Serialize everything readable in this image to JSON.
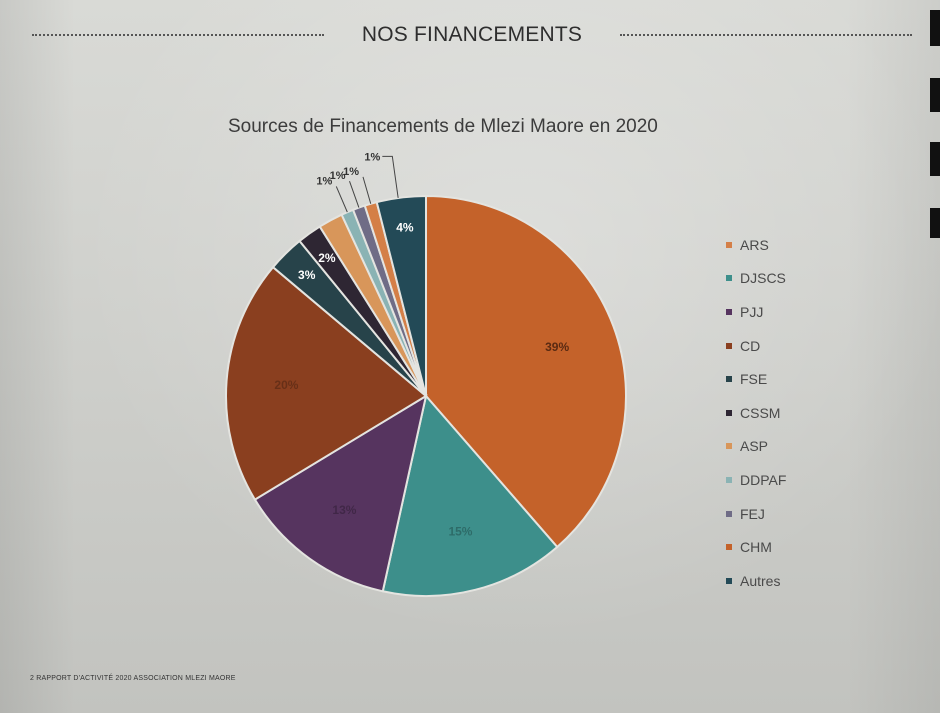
{
  "header": {
    "title": "NOS FINANCEMENTS"
  },
  "footer": {
    "text": "2  RAPPORT D'ACTIVITÉ 2020 ASSOCIATION MLEZI MAORE"
  },
  "chart_data": {
    "type": "pie",
    "title": "Sources de Financements de Mlezi Maore en 2020",
    "legend_position": "right",
    "slices": [
      {
        "label": "CHM",
        "value": 39,
        "text": "39%",
        "color": "#c4622a"
      },
      {
        "label": "DJSCS",
        "value": 15,
        "text": "15%",
        "color": "#3d8f8b"
      },
      {
        "label": "PJJ",
        "value": 13,
        "text": "13%",
        "color": "#56345f"
      },
      {
        "label": "CD",
        "value": 20,
        "text": "20%",
        "color": "#8a3f1f"
      },
      {
        "label": "FSE",
        "value": 3,
        "text": "3%",
        "color": "#27434a"
      },
      {
        "label": "CSSM",
        "value": 2,
        "text": "2%",
        "color": "#2e2633"
      },
      {
        "label": "ASP",
        "value": 2,
        "text": "",
        "color": "#d8965a"
      },
      {
        "label": "DDPAF",
        "value": 1,
        "text": "1%",
        "color": "#8ab3b4"
      },
      {
        "label": "FEJ",
        "value": 1,
        "text": "1%",
        "color": "#6f6c86"
      },
      {
        "label": "ARS",
        "value": 1,
        "text": "1%",
        "color": "#d47f47"
      },
      {
        "label": "Autres",
        "value": 4,
        "text": "4%",
        "color": "#234a57"
      }
    ],
    "extra_labels": [
      "1%"
    ],
    "legend": [
      {
        "label": "ARS",
        "color": "#d47f47"
      },
      {
        "label": "DJSCS",
        "color": "#3d8f8b"
      },
      {
        "label": "PJJ",
        "color": "#56345f"
      },
      {
        "label": "CD",
        "color": "#8a3f1f"
      },
      {
        "label": "FSE",
        "color": "#27434a"
      },
      {
        "label": "CSSM",
        "color": "#2e2633"
      },
      {
        "label": "ASP",
        "color": "#d8965a"
      },
      {
        "label": "DDPAF",
        "color": "#8ab3b4"
      },
      {
        "label": "FEJ",
        "color": "#6f6c86"
      },
      {
        "label": "CHM",
        "color": "#c4622a"
      },
      {
        "label": "Autres",
        "color": "#234a57"
      }
    ]
  }
}
